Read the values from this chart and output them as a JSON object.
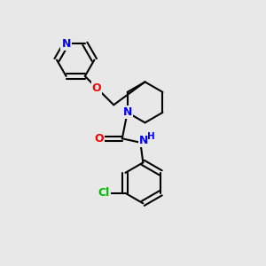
{
  "bg_color": "#e8e8e8",
  "bond_color": "#000000",
  "N_color": "#0000ff",
  "O_color": "#ff0000",
  "Cl_color": "#00bb00",
  "line_width": 1.5,
  "figsize": [
    3.0,
    3.0
  ],
  "dpi": 100,
  "xlim": [
    0,
    10
  ],
  "ylim": [
    0,
    10
  ]
}
